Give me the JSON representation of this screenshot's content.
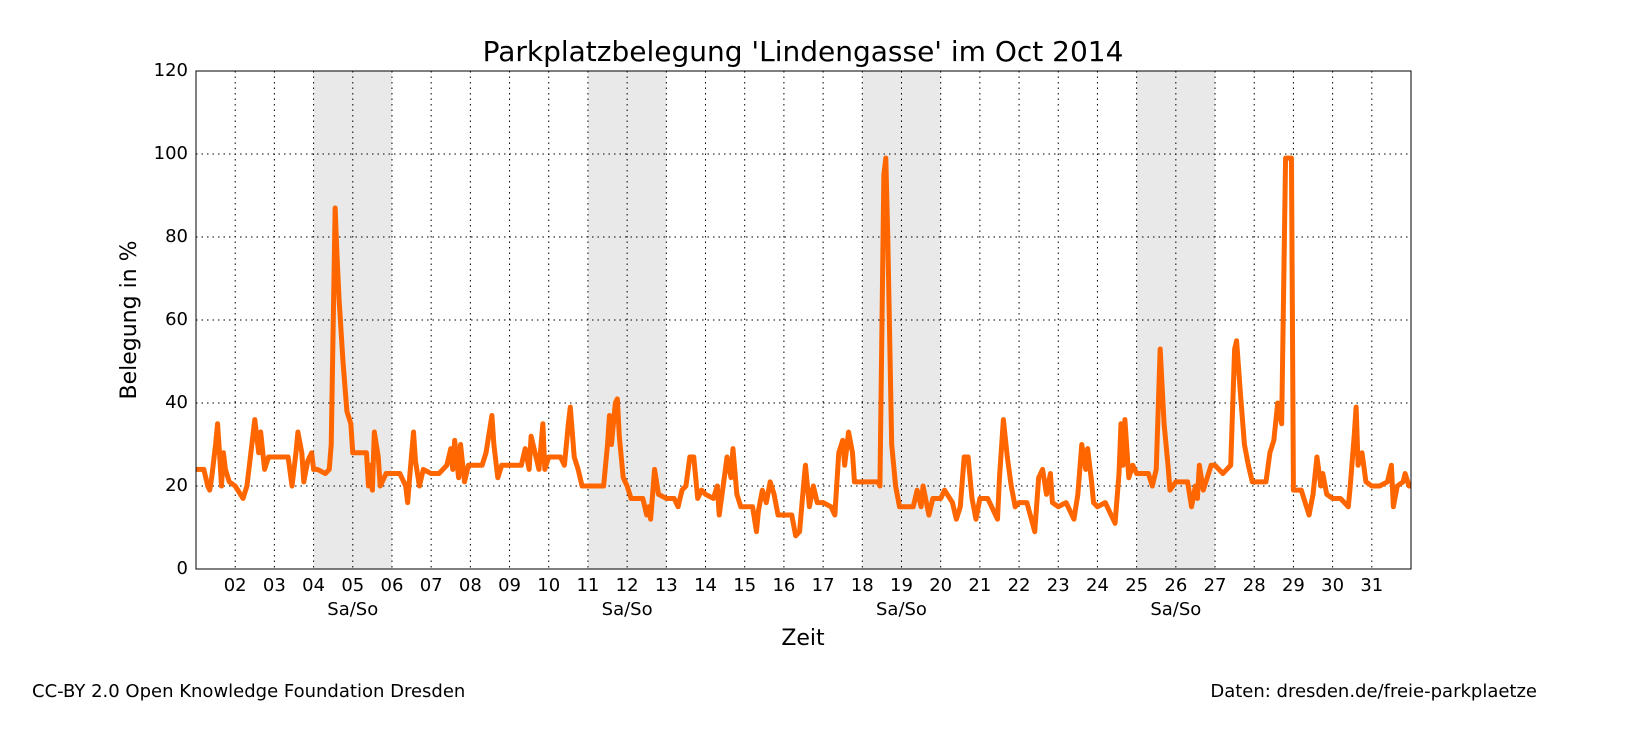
{
  "chart_data": {
    "type": "line",
    "title": "Parkplatzbelegung 'Lindengasse' im Oct 2014",
    "xlabel": "Zeit",
    "ylabel": "Belegung in %",
    "color": "#ff6600",
    "grid": true,
    "xlim": [
      1,
      32
    ],
    "ylim": [
      0,
      120
    ],
    "yticks": [
      0,
      20,
      40,
      60,
      80,
      100,
      120
    ],
    "xticks": [
      {
        "value": 2,
        "label": "02"
      },
      {
        "value": 3,
        "label": "03"
      },
      {
        "value": 4,
        "label": "04"
      },
      {
        "value": 5,
        "label": "05"
      },
      {
        "value": 6,
        "label": "06"
      },
      {
        "value": 7,
        "label": "07"
      },
      {
        "value": 8,
        "label": "08"
      },
      {
        "value": 9,
        "label": "09"
      },
      {
        "value": 10,
        "label": "10"
      },
      {
        "value": 11,
        "label": "11"
      },
      {
        "value": 12,
        "label": "12"
      },
      {
        "value": 13,
        "label": "13"
      },
      {
        "value": 14,
        "label": "14"
      },
      {
        "value": 15,
        "label": "15"
      },
      {
        "value": 16,
        "label": "16"
      },
      {
        "value": 17,
        "label": "17"
      },
      {
        "value": 18,
        "label": "18"
      },
      {
        "value": 19,
        "label": "19"
      },
      {
        "value": 20,
        "label": "20"
      },
      {
        "value": 21,
        "label": "21"
      },
      {
        "value": 22,
        "label": "22"
      },
      {
        "value": 23,
        "label": "23"
      },
      {
        "value": 24,
        "label": "24"
      },
      {
        "value": 25,
        "label": "25"
      },
      {
        "value": 26,
        "label": "26"
      },
      {
        "value": 27,
        "label": "27"
      },
      {
        "value": 28,
        "label": "28"
      },
      {
        "value": 29,
        "label": "29"
      },
      {
        "value": 30,
        "label": "30"
      },
      {
        "value": 31,
        "label": "31"
      }
    ],
    "weekends": [
      {
        "from": 4,
        "to": 6,
        "label": "Sa/So"
      },
      {
        "from": 11,
        "to": 13,
        "label": "Sa/So"
      },
      {
        "from": 18,
        "to": 20,
        "label": "Sa/So"
      },
      {
        "from": 25,
        "to": 27,
        "label": "Sa/So"
      }
    ],
    "x": [
      1.0,
      1.2,
      1.3,
      1.35,
      1.4,
      1.5,
      1.55,
      1.6,
      1.65,
      1.7,
      1.75,
      1.85,
      2.0,
      2.2,
      2.3,
      2.4,
      2.5,
      2.6,
      2.65,
      2.75,
      2.85,
      3.0,
      3.35,
      3.45,
      3.55,
      3.6,
      3.7,
      3.75,
      3.85,
      3.95,
      4.0,
      4.1,
      4.3,
      4.4,
      4.45,
      4.55,
      4.6,
      4.65,
      4.75,
      4.85,
      4.95,
      5.0,
      5.35,
      5.4,
      5.45,
      5.5,
      5.55,
      5.65,
      5.7,
      5.85,
      6.0,
      6.2,
      6.35,
      6.4,
      6.45,
      6.55,
      6.6,
      6.7,
      6.8,
      7.0,
      7.2,
      7.4,
      7.5,
      7.55,
      7.6,
      7.7,
      7.75,
      7.85,
      7.95,
      8.0,
      8.3,
      8.4,
      8.55,
      8.6,
      8.7,
      8.8,
      9.0,
      9.3,
      9.4,
      9.5,
      9.55,
      9.65,
      9.75,
      9.85,
      9.9,
      10.0,
      10.3,
      10.4,
      10.5,
      10.55,
      10.65,
      10.75,
      10.85,
      11.0,
      11.4,
      11.5,
      11.55,
      11.6,
      11.7,
      11.75,
      11.8,
      11.9,
      12.0,
      12.1,
      12.4,
      12.5,
      12.55,
      12.6,
      12.7,
      12.8,
      13.0,
      13.2,
      13.3,
      13.4,
      13.5,
      13.6,
      13.7,
      13.8,
      13.9,
      14.0,
      14.2,
      14.3,
      14.35,
      14.45,
      14.55,
      14.65,
      14.7,
      14.8,
      14.9,
      15.0,
      15.2,
      15.3,
      15.35,
      15.45,
      15.55,
      15.65,
      15.75,
      15.85,
      16.0,
      16.2,
      16.3,
      16.4,
      16.5,
      16.55,
      16.65,
      16.75,
      16.85,
      17.0,
      17.2,
      17.3,
      17.4,
      17.5,
      17.55,
      17.65,
      17.75,
      17.8,
      18.0,
      18.4,
      18.45,
      18.55,
      18.6,
      18.65,
      18.75,
      18.85,
      18.95,
      19.0,
      19.3,
      19.4,
      19.5,
      19.55,
      19.7,
      19.8,
      20.0,
      20.1,
      20.3,
      20.4,
      20.5,
      20.6,
      20.7,
      20.8,
      20.9,
      21.0,
      21.2,
      21.4,
      21.45,
      21.5,
      21.6,
      21.7,
      21.8,
      21.9,
      22.0,
      22.2,
      22.4,
      22.5,
      22.6,
      22.7,
      22.8,
      22.85,
      23.0,
      23.2,
      23.4,
      23.5,
      23.6,
      23.7,
      23.75,
      23.85,
      23.9,
      24.0,
      24.2,
      24.4,
      24.45,
      24.55,
      24.6,
      24.65,
      24.7,
      24.8,
      24.9,
      25.0,
      25.3,
      25.4,
      25.5,
      25.6,
      25.7,
      25.8,
      25.85,
      26.0,
      26.1,
      26.3,
      26.4,
      26.5,
      26.55,
      26.6,
      26.7,
      26.8,
      26.9,
      27.0,
      27.2,
      27.4,
      27.5,
      27.55,
      27.65,
      27.75,
      27.85,
      27.95,
      28.0,
      28.3,
      28.4,
      28.5,
      28.6,
      28.7,
      28.8,
      28.95,
      29.0,
      29.2,
      29.4,
      29.5,
      29.6,
      29.7,
      29.75,
      29.85,
      30.0,
      30.2,
      30.4,
      30.45,
      30.55,
      30.6,
      30.65,
      30.75,
      30.85,
      31.0,
      31.2,
      31.4,
      31.5,
      31.55,
      31.65,
      31.8,
      31.85,
      31.95,
      32.0
    ],
    "values": [
      24,
      24,
      20,
      19,
      22,
      30,
      35,
      28,
      20,
      28,
      24,
      21,
      20,
      17,
      20,
      28,
      36,
      28,
      33,
      24,
      27,
      27,
      27,
      20,
      28,
      33,
      28,
      21,
      26,
      28,
      24,
      24,
      23,
      24,
      30,
      87,
      75,
      65,
      50,
      38,
      35,
      28,
      28,
      20,
      25,
      19,
      33,
      27,
      20,
      23,
      23,
      23,
      20,
      16,
      22,
      33,
      26,
      20,
      24,
      23,
      23,
      25,
      29,
      24,
      31,
      22,
      30,
      21,
      25,
      25,
      25,
      28,
      37,
      30,
      22,
      25,
      25,
      25,
      29,
      24,
      32,
      28,
      24,
      35,
      24,
      27,
      27,
      25,
      35,
      39,
      27,
      24,
      20,
      20,
      20,
      30,
      37,
      30,
      40,
      41,
      32,
      22,
      20,
      17,
      17,
      13,
      15,
      12,
      24,
      18,
      17,
      17,
      15,
      19,
      20,
      27,
      27,
      17,
      19,
      18,
      17,
      20,
      13,
      20,
      27,
      22,
      29,
      18,
      15,
      15,
      15,
      9,
      14,
      19,
      16,
      21,
      18,
      13,
      13,
      13,
      8,
      9,
      20,
      25,
      15,
      20,
      16,
      16,
      15,
      13,
      28,
      31,
      25,
      33,
      28,
      21,
      21,
      21,
      20,
      95,
      99,
      80,
      30,
      20,
      15,
      15,
      15,
      19,
      15,
      20,
      13,
      17,
      17,
      19,
      16,
      12,
      15,
      27,
      27,
      17,
      12,
      17,
      17,
      13,
      12,
      22,
      36,
      27,
      20,
      15,
      16,
      16,
      9,
      22,
      24,
      18,
      23,
      16,
      15,
      16,
      12,
      18,
      30,
      24,
      29,
      21,
      16,
      15,
      16,
      12,
      11,
      23,
      35,
      25,
      36,
      22,
      25,
      23,
      23,
      20,
      24,
      53,
      35,
      25,
      19,
      21,
      21,
      21,
      15,
      20,
      17,
      25,
      19,
      22,
      25,
      25,
      23,
      25,
      53,
      55,
      42,
      30,
      25,
      21,
      21,
      21,
      28,
      31,
      40,
      35,
      99,
      99,
      19,
      19,
      13,
      18,
      27,
      20,
      23,
      18,
      17,
      17,
      15,
      20,
      32,
      39,
      25,
      28,
      21,
      20,
      20,
      21,
      25,
      15,
      20,
      21,
      23,
      20,
      20
    ]
  },
  "footer": {
    "left": "CC-BY 2.0 Open Knowledge Foundation Dresden",
    "right": "Daten: dresden.de/freie-parkplaetze"
  }
}
